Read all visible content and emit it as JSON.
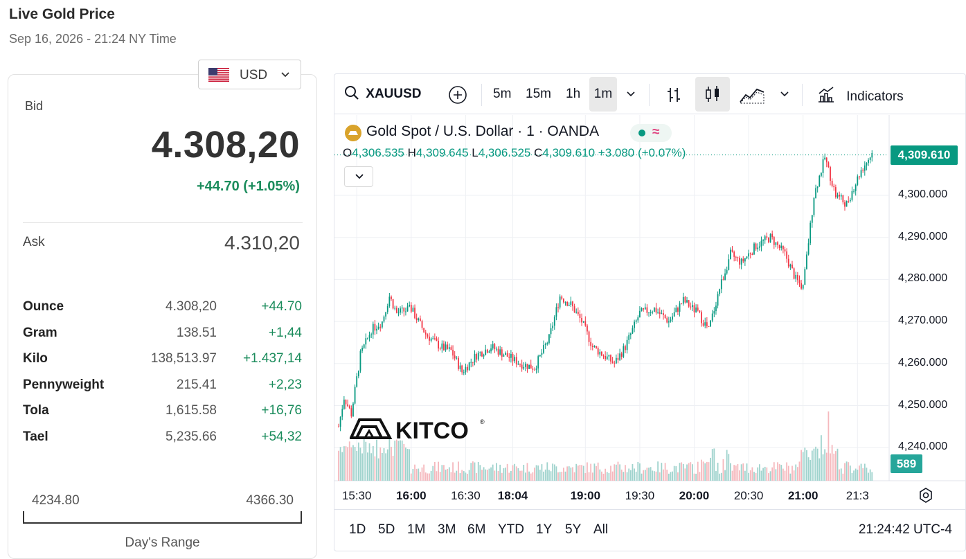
{
  "page": {
    "title": "Live Gold Price",
    "timestamp": "Sep 16, 2026 - 21:24 NY Time"
  },
  "currency": {
    "selected": "USD",
    "flag_icon": "us-flag-icon"
  },
  "quote": {
    "bid_label": "Bid",
    "bid": "4.308,20",
    "change": "+44.70 (+1.05%)",
    "ask_label": "Ask",
    "ask": "4.310,20"
  },
  "units": [
    {
      "name": "Ounce",
      "price": "4.308,20",
      "change": "+44.70"
    },
    {
      "name": "Gram",
      "price": "138.51",
      "change": "+1,44"
    },
    {
      "name": "Kilo",
      "price": "138,513.97",
      "change": "+1.437,14"
    },
    {
      "name": "Pennyweight",
      "price": "215.41",
      "change": "+2,23"
    },
    {
      "name": "Tola",
      "price": "1,615.58",
      "change": "+16,76"
    },
    {
      "name": "Tael",
      "price": "5,235.66",
      "change": "+54,32"
    }
  ],
  "day_range": {
    "low": "4234.80",
    "high": "4366.30",
    "label": "Day's Range"
  },
  "toolbar": {
    "symbol": "XAUUSD",
    "intervals": [
      "5m",
      "15m",
      "1h",
      "1m"
    ],
    "selected_interval": "1m",
    "indicators_label": "Indicators"
  },
  "legend": {
    "title": "Gold Spot  /  U.S. Dollar · 1 · OANDA",
    "o_label": "O",
    "o": "4,306.535",
    "h_label": "H",
    "h": "4,309.645",
    "l_label": "L",
    "l": "4,306.525",
    "c_label": "C",
    "c": "4,309.610",
    "change": "+3.080 (+0.07%)"
  },
  "watermark": "KITCO",
  "last_price_tag": "4,309.610",
  "volume_tag": "589",
  "ranges": [
    "1D",
    "5D",
    "1M",
    "3M",
    "6M",
    "YTD",
    "1Y",
    "5Y",
    "All"
  ],
  "clock": "21:24:42 UTC-4",
  "colors": {
    "up": "#089981",
    "down": "#f23645",
    "volume_up": "#9fd3cd",
    "volume_down": "#f5b8bd",
    "positive_text": "#1b8c5c"
  },
  "chart_data": {
    "type": "candlestick",
    "title": "Gold Spot / U.S. Dollar · 1 · OANDA",
    "y_ticks": [
      "4,300.000",
      "4,290.000",
      "4,280.000",
      "4,270.000",
      "4,260.000",
      "4,250.000",
      "4,240.000"
    ],
    "ylim": [
      4234,
      4316
    ],
    "x_ticks": [
      {
        "label": "15:30",
        "bold": false
      },
      {
        "label": "16:00",
        "bold": true
      },
      {
        "label": "16:30",
        "bold": false
      },
      {
        "label": "18:04",
        "bold": true
      },
      {
        "label": "19:00",
        "bold": true
      },
      {
        "label": "19:30",
        "bold": false
      },
      {
        "label": "20:00",
        "bold": true
      },
      {
        "label": "20:30",
        "bold": false
      },
      {
        "label": "21:00",
        "bold": true
      },
      {
        "label": "21:3",
        "bold": false
      }
    ],
    "x_tick_idx": [
      10,
      40,
      70,
      96,
      136,
      166,
      196,
      226,
      256,
      286
    ],
    "price_path": [
      [
        0,
        4245
      ],
      [
        3,
        4252
      ],
      [
        7,
        4248
      ],
      [
        12,
        4262
      ],
      [
        18,
        4268
      ],
      [
        24,
        4270
      ],
      [
        28,
        4276
      ],
      [
        32,
        4272
      ],
      [
        40,
        4273
      ],
      [
        48,
        4267
      ],
      [
        56,
        4264
      ],
      [
        62,
        4263
      ],
      [
        68,
        4258
      ],
      [
        76,
        4262
      ],
      [
        84,
        4264
      ],
      [
        92,
        4262
      ],
      [
        100,
        4260
      ],
      [
        108,
        4259
      ],
      [
        116,
        4266
      ],
      [
        122,
        4276
      ],
      [
        128,
        4274
      ],
      [
        134,
        4270
      ],
      [
        140,
        4264
      ],
      [
        146,
        4262
      ],
      [
        152,
        4260
      ],
      [
        158,
        4264
      ],
      [
        166,
        4272
      ],
      [
        174,
        4273
      ],
      [
        182,
        4270
      ],
      [
        190,
        4275
      ],
      [
        198,
        4272
      ],
      [
        204,
        4268
      ],
      [
        210,
        4278
      ],
      [
        216,
        4286
      ],
      [
        222,
        4284
      ],
      [
        230,
        4288
      ],
      [
        238,
        4290
      ],
      [
        246,
        4286
      ],
      [
        252,
        4280
      ],
      [
        256,
        4278
      ],
      [
        262,
        4300
      ],
      [
        268,
        4309
      ],
      [
        274,
        4300
      ],
      [
        280,
        4298
      ],
      [
        288,
        4306
      ],
      [
        294,
        4310
      ]
    ],
    "candle_count": 295,
    "volume_note": "volume histogram along bottom"
  }
}
